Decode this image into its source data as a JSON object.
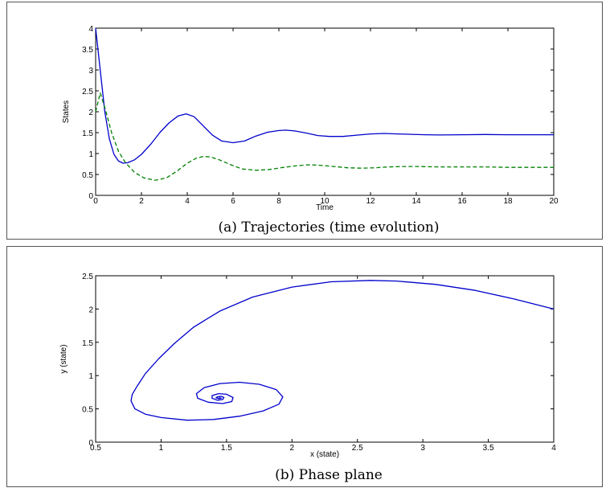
{
  "chart_data": [
    {
      "type": "line",
      "caption": "(a)  Trajectories (time evolution)",
      "xlabel": "Time",
      "ylabel": "States",
      "xlim": [
        0,
        20
      ],
      "ylim": [
        0,
        4
      ],
      "xticks": [
        "0",
        "2",
        "4",
        "6",
        "8",
        "10",
        "12",
        "14",
        "16",
        "18",
        "20"
      ],
      "yticks": [
        "0",
        "0.5",
        "1",
        "1.5",
        "2",
        "2.5",
        "3",
        "3.5",
        "4"
      ],
      "grid": false,
      "series": [
        {
          "color": "#0000cc",
          "style": "solid",
          "x": [
            0,
            0.2,
            0.4,
            0.6,
            0.8,
            1.0,
            1.2,
            1.4,
            1.7,
            2.0,
            2.4,
            2.8,
            3.2,
            3.6,
            3.95,
            4.3,
            4.7,
            5.1,
            5.5,
            6.0,
            6.5,
            7.0,
            7.5,
            8.0,
            8.3,
            8.7,
            9.2,
            9.7,
            10.2,
            10.8,
            11.4,
            12.0,
            12.6,
            13.2,
            13.8,
            14.4,
            15.0,
            16.0,
            17.0,
            18.0,
            19.0,
            20.0
          ],
          "y": [
            4.0,
            3.0,
            2.0,
            1.35,
            0.98,
            0.82,
            0.77,
            0.78,
            0.85,
            0.98,
            1.22,
            1.5,
            1.73,
            1.9,
            1.95,
            1.88,
            1.66,
            1.44,
            1.3,
            1.26,
            1.3,
            1.42,
            1.51,
            1.55,
            1.56,
            1.54,
            1.49,
            1.43,
            1.41,
            1.41,
            1.44,
            1.47,
            1.48,
            1.47,
            1.46,
            1.45,
            1.445,
            1.45,
            1.455,
            1.45,
            1.45,
            1.45
          ]
        },
        {
          "color": "#008000",
          "style": "dashed",
          "x": [
            0,
            0.2,
            0.4,
            0.7,
            1.0,
            1.3,
            1.7,
            2.1,
            2.6,
            3.1,
            3.6,
            4.0,
            4.4,
            4.7,
            5.0,
            5.4,
            5.9,
            6.4,
            7.0,
            7.6,
            8.2,
            8.8,
            9.3,
            9.8,
            10.4,
            11.0,
            11.6,
            12.2,
            12.8,
            13.4,
            14.0,
            15.0,
            16.0,
            17.0,
            18.0,
            19.0,
            20.0
          ],
          "y": [
            2.0,
            2.45,
            2.1,
            1.5,
            1.05,
            0.78,
            0.55,
            0.42,
            0.36,
            0.42,
            0.6,
            0.77,
            0.89,
            0.93,
            0.92,
            0.85,
            0.73,
            0.63,
            0.6,
            0.62,
            0.67,
            0.71,
            0.73,
            0.72,
            0.69,
            0.66,
            0.65,
            0.66,
            0.68,
            0.69,
            0.69,
            0.68,
            0.68,
            0.68,
            0.67,
            0.67,
            0.67
          ]
        }
      ]
    },
    {
      "type": "line",
      "caption": "(b)  Phase plane",
      "xlabel": "x (state)",
      "ylabel": "y (state)",
      "xlim": [
        0.5,
        4
      ],
      "ylim": [
        0,
        2.5
      ],
      "xticks": [
        "0.5",
        "1",
        "1.5",
        "2",
        "2.5",
        "3",
        "3.5",
        "4"
      ],
      "yticks": [
        "0",
        "0.5",
        "1",
        "1.5",
        "2",
        "2.5"
      ],
      "grid": false,
      "series": [
        {
          "color": "#0000cc",
          "style": "solid",
          "x": [
            4.0,
            3.7,
            3.4,
            3.1,
            2.8,
            2.6,
            2.3,
            2.0,
            1.7,
            1.45,
            1.25,
            1.1,
            0.98,
            0.88,
            0.82,
            0.78,
            0.77,
            0.8,
            0.88,
            1.0,
            1.2,
            1.4,
            1.6,
            1.78,
            1.9,
            1.93,
            1.88,
            1.75,
            1.6,
            1.45,
            1.33,
            1.27,
            1.28,
            1.36,
            1.47,
            1.54,
            1.55,
            1.5,
            1.44,
            1.39,
            1.39,
            1.43,
            1.47,
            1.48,
            1.46,
            1.43,
            1.42,
            1.44,
            1.46,
            1.45,
            1.44
          ],
          "y": [
            2.0,
            2.15,
            2.28,
            2.37,
            2.42,
            2.43,
            2.41,
            2.33,
            2.18,
            1.97,
            1.73,
            1.48,
            1.25,
            1.03,
            0.85,
            0.72,
            0.62,
            0.5,
            0.42,
            0.37,
            0.33,
            0.34,
            0.39,
            0.47,
            0.57,
            0.68,
            0.79,
            0.87,
            0.9,
            0.88,
            0.82,
            0.73,
            0.66,
            0.6,
            0.58,
            0.61,
            0.67,
            0.72,
            0.73,
            0.7,
            0.66,
            0.63,
            0.64,
            0.67,
            0.69,
            0.68,
            0.665,
            0.655,
            0.66,
            0.665,
            0.66
          ]
        }
      ]
    }
  ]
}
